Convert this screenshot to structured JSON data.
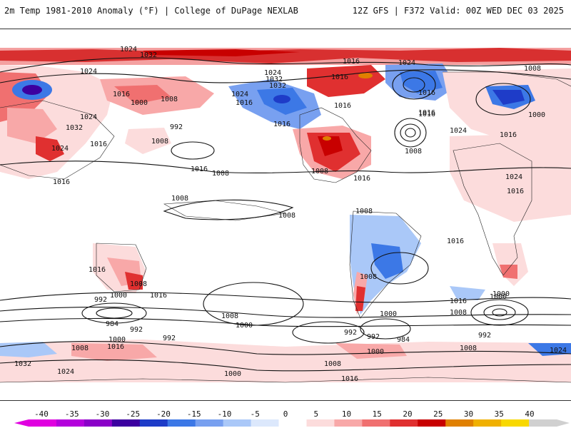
{
  "header": {
    "left_title": "2m Temp 1981-2010 Anomaly (°F) | College of DuPage NEXLAB",
    "right_title": "12Z GFS | F372 Valid: 00Z WED DEC 03 2025"
  },
  "colorbar": {
    "ticks": [
      "-40",
      "-35",
      "-30",
      "-25",
      "-20",
      "-15",
      "-10",
      "-5",
      "0",
      "5",
      "10",
      "15",
      "20",
      "25",
      "30",
      "35",
      "40"
    ],
    "colors": [
      "#e000e0",
      "#b400dc",
      "#8a00c8",
      "#3c00a0",
      "#1e3cc8",
      "#3c78e6",
      "#78a0f0",
      "#aac8f8",
      "#dce8fc",
      "#ffffff",
      "#fcdcdc",
      "#f8a8a8",
      "#f07070",
      "#e03030",
      "#c80000",
      "#e08000",
      "#f0b000",
      "#f8d800",
      "#d0d0d0"
    ]
  },
  "map": {
    "contour_labels": [
      {
        "text": "1024"
      },
      {
        "text": "1032"
      },
      {
        "text": "1024"
      },
      {
        "text": "1016"
      },
      {
        "text": "1008"
      },
      {
        "text": "1000"
      },
      {
        "text": "1024"
      },
      {
        "text": "992"
      },
      {
        "text": "1032"
      },
      {
        "text": "1008"
      },
      {
        "text": "1016"
      },
      {
        "text": "1024"
      },
      {
        "text": "1016"
      },
      {
        "text": "1024"
      },
      {
        "text": "1032"
      },
      {
        "text": "1016"
      },
      {
        "text": "1016"
      },
      {
        "text": "1016"
      },
      {
        "text": "1024"
      },
      {
        "text": "1032"
      },
      {
        "text": "1016"
      },
      {
        "text": "1008"
      },
      {
        "text": "1016"
      },
      {
        "text": "1016"
      },
      {
        "text": "1008"
      },
      {
        "text": "1016"
      },
      {
        "text": "1008"
      },
      {
        "text": "1000"
      },
      {
        "text": "1016"
      },
      {
        "text": "1024"
      },
      {
        "text": "1016"
      },
      {
        "text": "1008"
      },
      {
        "text": "1008"
      },
      {
        "text": "1024"
      },
      {
        "text": "1016"
      },
      {
        "text": "1016"
      },
      {
        "text": "1008"
      },
      {
        "text": "1016"
      },
      {
        "text": "1016"
      },
      {
        "text": "1008"
      },
      {
        "text": "1016"
      },
      {
        "text": "1024"
      },
      {
        "text": "1008"
      },
      {
        "text": "1000"
      },
      {
        "text": "1016"
      },
      {
        "text": "1000"
      },
      {
        "text": "1008"
      },
      {
        "text": "992"
      },
      {
        "text": "984"
      },
      {
        "text": "1000"
      },
      {
        "text": "992"
      },
      {
        "text": "1016"
      },
      {
        "text": "1008"
      },
      {
        "text": "992"
      },
      {
        "text": "1000"
      },
      {
        "text": "1000"
      },
      {
        "text": "992"
      },
      {
        "text": "992"
      },
      {
        "text": "984"
      },
      {
        "text": "1000"
      },
      {
        "text": "1008"
      },
      {
        "text": "1008"
      },
      {
        "text": "1016"
      },
      {
        "text": "1024"
      },
      {
        "text": "1032"
      },
      {
        "text": "1000"
      },
      {
        "text": "1008"
      },
      {
        "text": "1016"
      },
      {
        "text": "1000"
      },
      {
        "text": "992"
      },
      {
        "text": "1008"
      },
      {
        "text": "1024"
      }
    ]
  }
}
